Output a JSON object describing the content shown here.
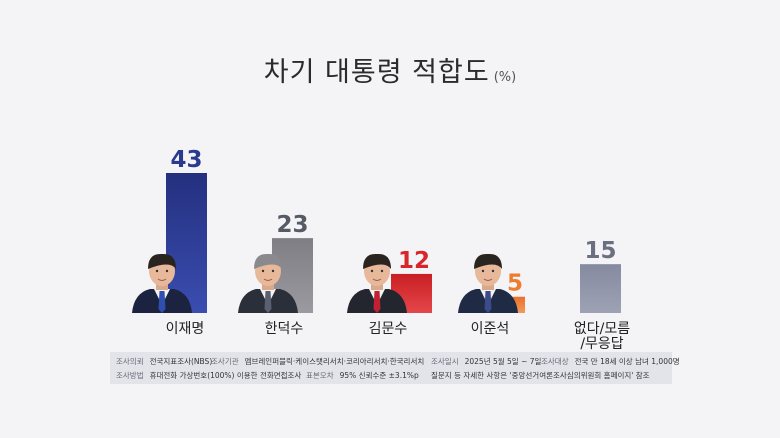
{
  "title": "차기 대통령 적합도",
  "unit": "(%)",
  "colors": {
    "lee_jaemyung": "#2a3a8e",
    "han_dukso": "#8a8a90",
    "kim_moonsoo": "#d8262a",
    "lee_junseok": "#ee7b2e",
    "none": "#8b8fa2"
  },
  "chart_data": {
    "type": "bar",
    "categories": [
      "이재명",
      "한덕수",
      "김문수",
      "이준석",
      "없다/모름\n/무응답"
    ],
    "values": [
      43,
      23,
      12,
      5,
      15
    ],
    "value_labels": [
      "43",
      "23",
      "12",
      "5",
      "15"
    ],
    "ylim": [
      0,
      50
    ],
    "grid": false,
    "legend": "none"
  },
  "footer": {
    "row1": [
      {
        "label": "조사의뢰",
        "value": "전국지표조사(NBS)"
      },
      {
        "label": "조사기관",
        "value": "엠브레인퍼블릭·케이스탯리서치·코리아리서치·한국리서치"
      },
      {
        "label": "조사일시",
        "value": "2025년 5월 5일 ~ 7일"
      },
      {
        "label": "조사대상",
        "value": "전국 만 18세 이상 남녀 1,000명"
      }
    ],
    "row2": [
      {
        "label": "조사방법",
        "value": "휴대전화 가상번호(100%) 이용한 전화면접조사"
      },
      {
        "label": "표본오차",
        "value": "95% 신뢰수준 ±3.1%p"
      },
      {
        "label": "",
        "value": "질문지 등 자세한 사항은 '중앙선거여론조사심의위원회 홈페이지' 참조"
      }
    ]
  }
}
